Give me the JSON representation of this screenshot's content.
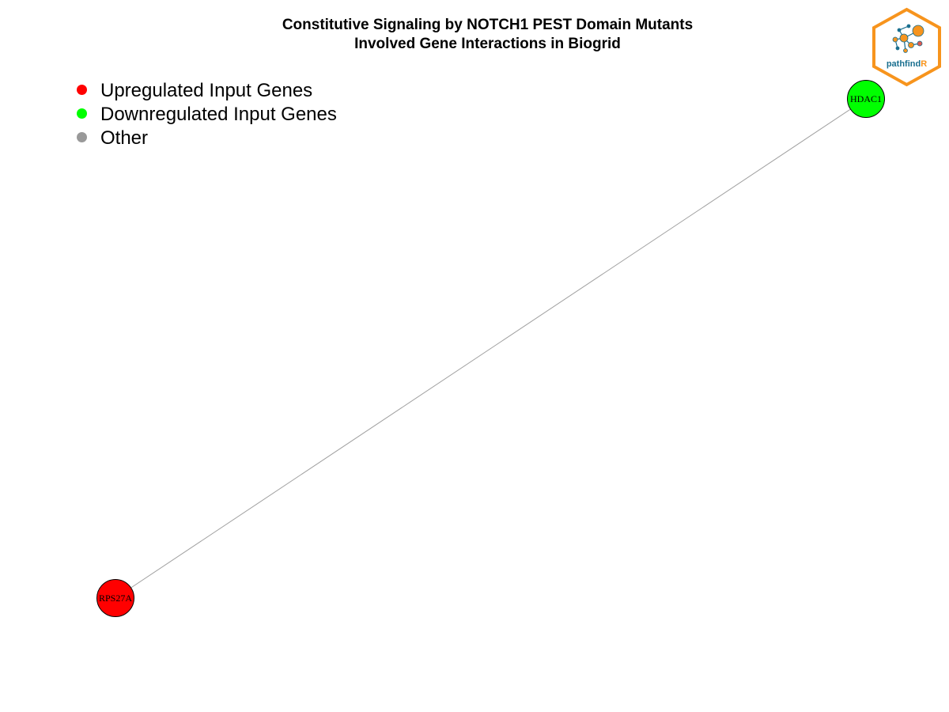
{
  "title": {
    "line1": "Constitutive Signaling by NOTCH1 PEST Domain Mutants",
    "line2": "Involved Gene Interactions in Biogrid"
  },
  "legend": [
    {
      "label": "Upregulated Input Genes",
      "color": "#ff0000"
    },
    {
      "label": "Downregulated Input Genes",
      "color": "#00ff00"
    },
    {
      "label": "Other",
      "color": "#999999"
    }
  ],
  "network": {
    "nodes": [
      {
        "id": "HDAC1",
        "label": "HDAC1",
        "color": "#00ff00",
        "category": "Downregulated Input Genes"
      },
      {
        "id": "RPS27A",
        "label": "RPS27A",
        "color": "#ff0000",
        "category": "Upregulated Input Genes"
      }
    ],
    "edges": [
      {
        "source": "HDAC1",
        "target": "RPS27A",
        "color": "#a0a0a0"
      }
    ]
  },
  "logo": {
    "text_main": "pathfind",
    "text_accent": "R",
    "main_color": "#1a6f8f",
    "accent_color": "#f7941d",
    "border_color": "#f7941d"
  }
}
